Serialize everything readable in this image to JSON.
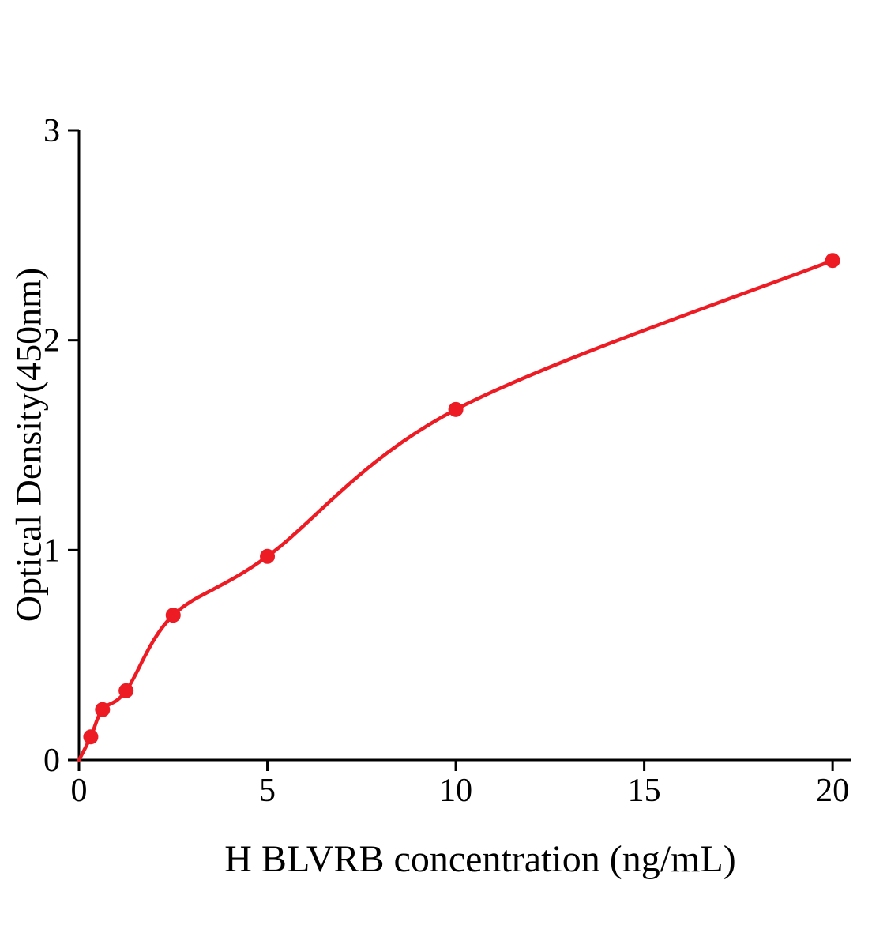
{
  "chart_data": {
    "type": "scatter",
    "title": "",
    "xlabel": "H BLVRB concentration (ng/mL)",
    "ylabel": "Optical Density(450nm)",
    "x": [
      0.313,
      0.625,
      1.25,
      2.5,
      5,
      10,
      20
    ],
    "y": [
      0.11,
      0.24,
      0.33,
      0.69,
      0.97,
      1.67,
      2.38
    ],
    "fit_curve": {
      "type": "smooth",
      "start": [
        0,
        0
      ]
    },
    "xlim": [
      0,
      20.5
    ],
    "ylim": [
      0,
      3
    ],
    "xticks": [
      0,
      5,
      10,
      15,
      20
    ],
    "yticks": [
      0,
      1,
      2,
      3
    ],
    "grid": false,
    "legend": null,
    "colors": {
      "points": "#ed1c24",
      "curve": "#ed1c24",
      "axes": "#000000",
      "text": "#000000"
    }
  }
}
